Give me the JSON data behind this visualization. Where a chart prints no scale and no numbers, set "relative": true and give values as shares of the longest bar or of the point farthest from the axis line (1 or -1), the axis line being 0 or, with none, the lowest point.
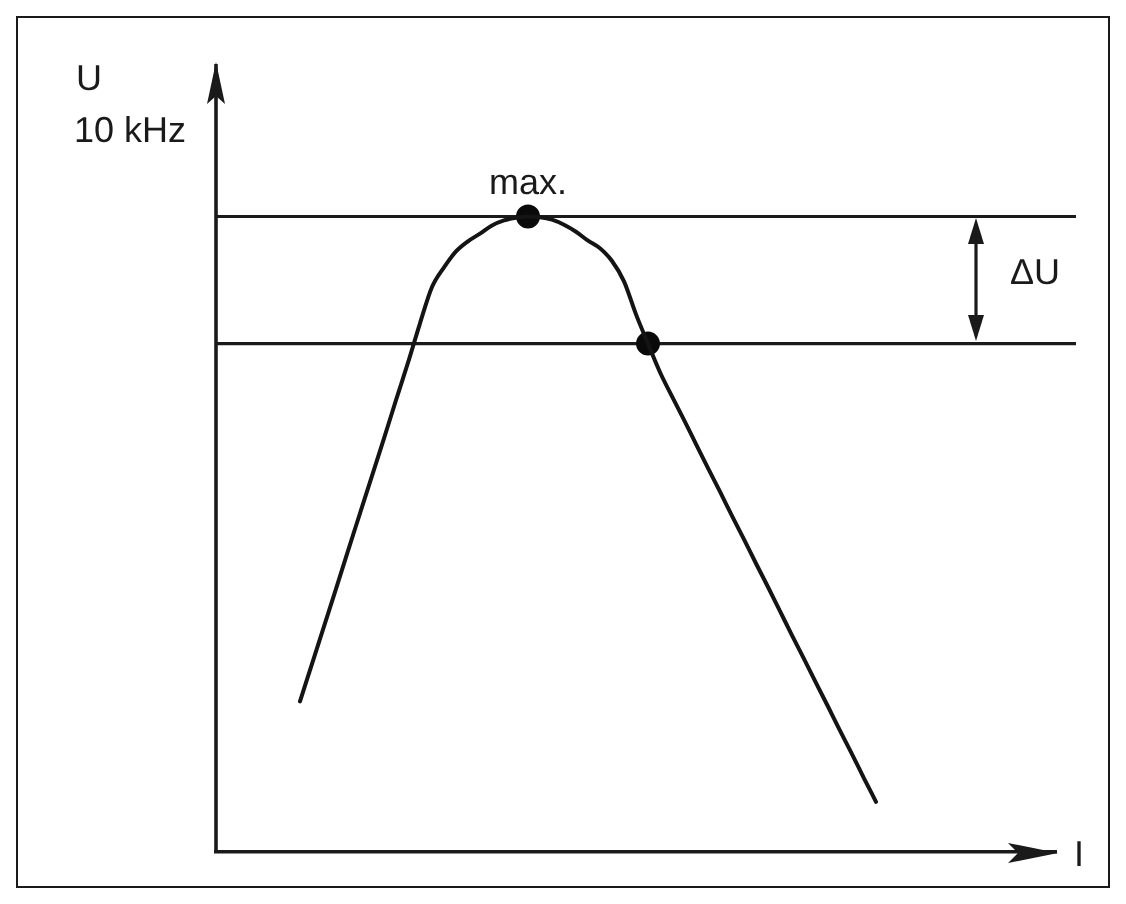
{
  "chart_data": {
    "type": "line",
    "relative": true,
    "ylabel": "U",
    "xlabel": "I",
    "marker": "none",
    "categories": [
      null,
      null,
      null,
      null,
      null,
      null,
      null,
      null,
      null,
      null,
      null,
      null,
      null,
      null,
      null,
      null,
      null,
      null,
      null,
      null,
      null,
      null,
      null,
      null,
      null,
      null,
      null,
      null,
      null,
      null,
      null,
      null,
      null,
      null,
      null,
      null,
      null,
      null,
      null,
      null,
      null,
      null,
      null,
      null,
      null,
      null,
      null,
      null,
      null,
      null,
      null,
      null,
      null,
      null,
      null,
      null,
      null,
      null,
      null,
      null,
      null,
      null,
      null,
      null,
      null,
      null,
      null,
      null,
      null,
      null,
      null
    ],
    "series": [
      {
        "color": "#141414",
        "values": [
          null,
          null,
          null,
          null,
          null,
          null,
          null,
          0.237,
          0.296,
          0.355,
          0.414,
          0.474,
          0.533,
          0.592,
          0.651,
          0.711,
          0.77,
          0.832,
          0.889,
          0.92,
          0.945,
          0.961,
          0.973,
          0.986,
          0.994,
          0.998,
          1.0,
          0.999,
          0.995,
          0.987,
          0.976,
          0.962,
          0.95,
          0.93,
          0.898,
          0.846,
          0.8,
          0.755,
          0.717,
          0.68,
          0.642,
          0.604,
          0.567,
          0.529,
          0.492,
          0.454,
          0.417,
          0.379,
          0.341,
          0.304,
          0.266,
          0.229,
          0.191,
          0.154,
          0.116,
          0.079,
          null,
          null,
          null,
          null,
          null,
          null,
          null,
          null,
          null,
          null,
          null,
          null,
          null,
          null,
          null
        ]
      },
      {
        "color": "#0a0a0a",
        "marker": "circle",
        "values": [
          null,
          null,
          null,
          null,
          null,
          null,
          null,
          null,
          null,
          null,
          null,
          null,
          null,
          null,
          null,
          null,
          null,
          null,
          null,
          null,
          null,
          null,
          null,
          null,
          null,
          null,
          1.0,
          null,
          null,
          null,
          null,
          null,
          null,
          null,
          null,
          null,
          0.8,
          null,
          null,
          null,
          null,
          null,
          null,
          null,
          null,
          null,
          null,
          null,
          null,
          null,
          null,
          null,
          null,
          null,
          null,
          null,
          null,
          null,
          null,
          null,
          null,
          null,
          null,
          null,
          null,
          null,
          null,
          null,
          null,
          null,
          null
        ]
      }
    ],
    "ref_lines": [
      {
        "axis": "y",
        "value": 1
      },
      {
        "axis": "y",
        "value": 0.8
      }
    ],
    "annotations": [
      "10 kHz",
      {
        "text": "max.",
        "y": 1
      },
      "ΔU"
    ]
  }
}
